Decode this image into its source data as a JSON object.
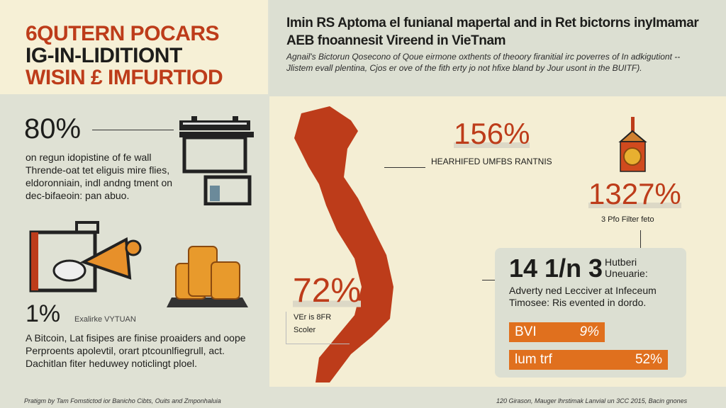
{
  "title": {
    "line1": "6QUTERN POCARS",
    "line2": "IG-IN-LIDITIONT",
    "line3": "WISIN £ IMFURTIOD"
  },
  "header": {
    "title": "Imin RS Aptoma el funianal mapertal and in Ret bictorns inyImamar AEB fnoannesit Vireend in VieTnam",
    "subtitle": "Agnail's Bictorun Qosecono of Qoue eirmone oxthents of theoory firanitial irc poverres of In adkigutiont -- Jlistem evall plentina, Cjos er ove of the fith erty jo not hfixe bland by Jour usont in the BUITF)."
  },
  "left": {
    "stat1": {
      "value": "80%",
      "text": "on regun idopistine of fe wall Thrende-oat tet eliguis mire flies, eldoronniain, indl andng tment on dec-bifaeoin: pan abuo."
    },
    "stat2": {
      "value": "1%",
      "label": "Exalirke VYTUAN",
      "text": "A Bitcoin, Lat fisipes are finise proaiders and oope Perproents apolevtil, orart ptcounlfiegrull, act. Dachitlan fiter heduwey noticlingt ploel."
    },
    "icons": [
      "building-icon",
      "megaphone-icon",
      "coin-stack-icon"
    ]
  },
  "map": {
    "color": "#bd3c1a",
    "stat_a": {
      "value": "156%",
      "label": "HEARHIFED UMFBS RANTNIS"
    },
    "stat_b": {
      "value": "1327%",
      "label": "3 Pfo Filter feto"
    },
    "stat_c": {
      "value": "72%",
      "label1": "VEr is 8FR",
      "label2": "Scoler"
    },
    "icon": "donation-box-icon"
  },
  "card": {
    "value": "14 1/n 3",
    "label": "Hutberi Uneuarie:",
    "text": "Adverty ned Lecciver at Infeceum Timosee: Ris evented in dordo.",
    "bars": [
      {
        "label": "BVI",
        "value": "9%",
        "percent": 60
      },
      {
        "label": "lum trf",
        "value": "52%",
        "percent": 100
      }
    ],
    "bar_color": "#e0701e"
  },
  "footer": {
    "left": "Pratigm by Tam Fomstictod ior Banicho Cibts, Ouits and Zmponhaluia",
    "right": "120 Girason, Mauger lhrstimak Lanvial un 3CC 2015, Bacin gnones"
  }
}
